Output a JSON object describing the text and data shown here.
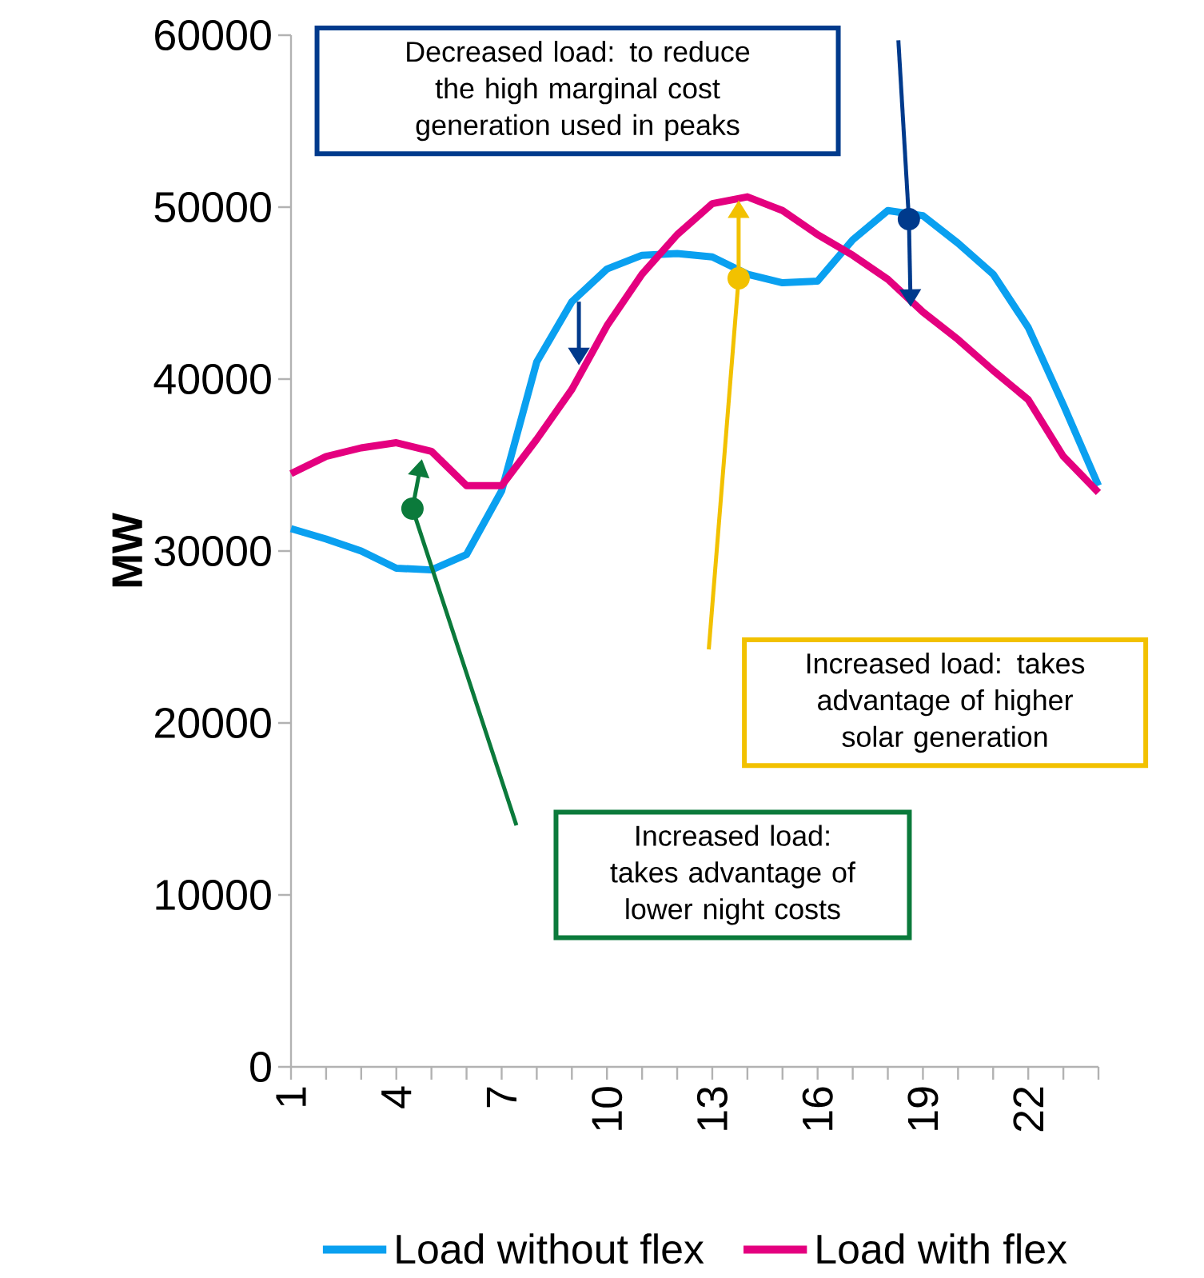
{
  "chart_data": {
    "type": "line",
    "ylabel": "MW",
    "legend": "bottom",
    "categories": [
      "1",
      null,
      null,
      "4",
      null,
      null,
      "7",
      null,
      null,
      "10",
      null,
      null,
      "13",
      null,
      null,
      "16",
      null,
      null,
      "19",
      null,
      null,
      "22",
      null,
      null
    ],
    "ylim": [
      0,
      60000
    ],
    "yticks": [
      0,
      10000,
      20000,
      30000,
      40000,
      50000,
      60000
    ],
    "series": [
      {
        "name": "Load without flex",
        "color": "#0aa0f0",
        "values": [
          31300,
          30700,
          30000,
          29000,
          28900,
          29800,
          33500,
          41000,
          44500,
          46400,
          47200,
          47300,
          47100,
          46100,
          45600,
          45700,
          48100,
          49800,
          49500,
          47900,
          46100,
          43000,
          38500,
          33800
        ]
      },
      {
        "name": "Load with flex",
        "color": "#e4007f",
        "values": [
          34500,
          35500,
          36000,
          36300,
          35800,
          33800,
          33800,
          36500,
          39400,
          43100,
          46100,
          48400,
          50200,
          50600,
          49800,
          48400,
          47200,
          45800,
          43900,
          42300,
          40500,
          38800,
          35500,
          33400
        ]
      }
    ],
    "annotations": [
      "Decreased load: to reduce the high marginal cost generation used in peaks",
      "Increased load: takes advantage of higher solar generation",
      "Increased load: takes advantage of lower night costs"
    ]
  }
}
